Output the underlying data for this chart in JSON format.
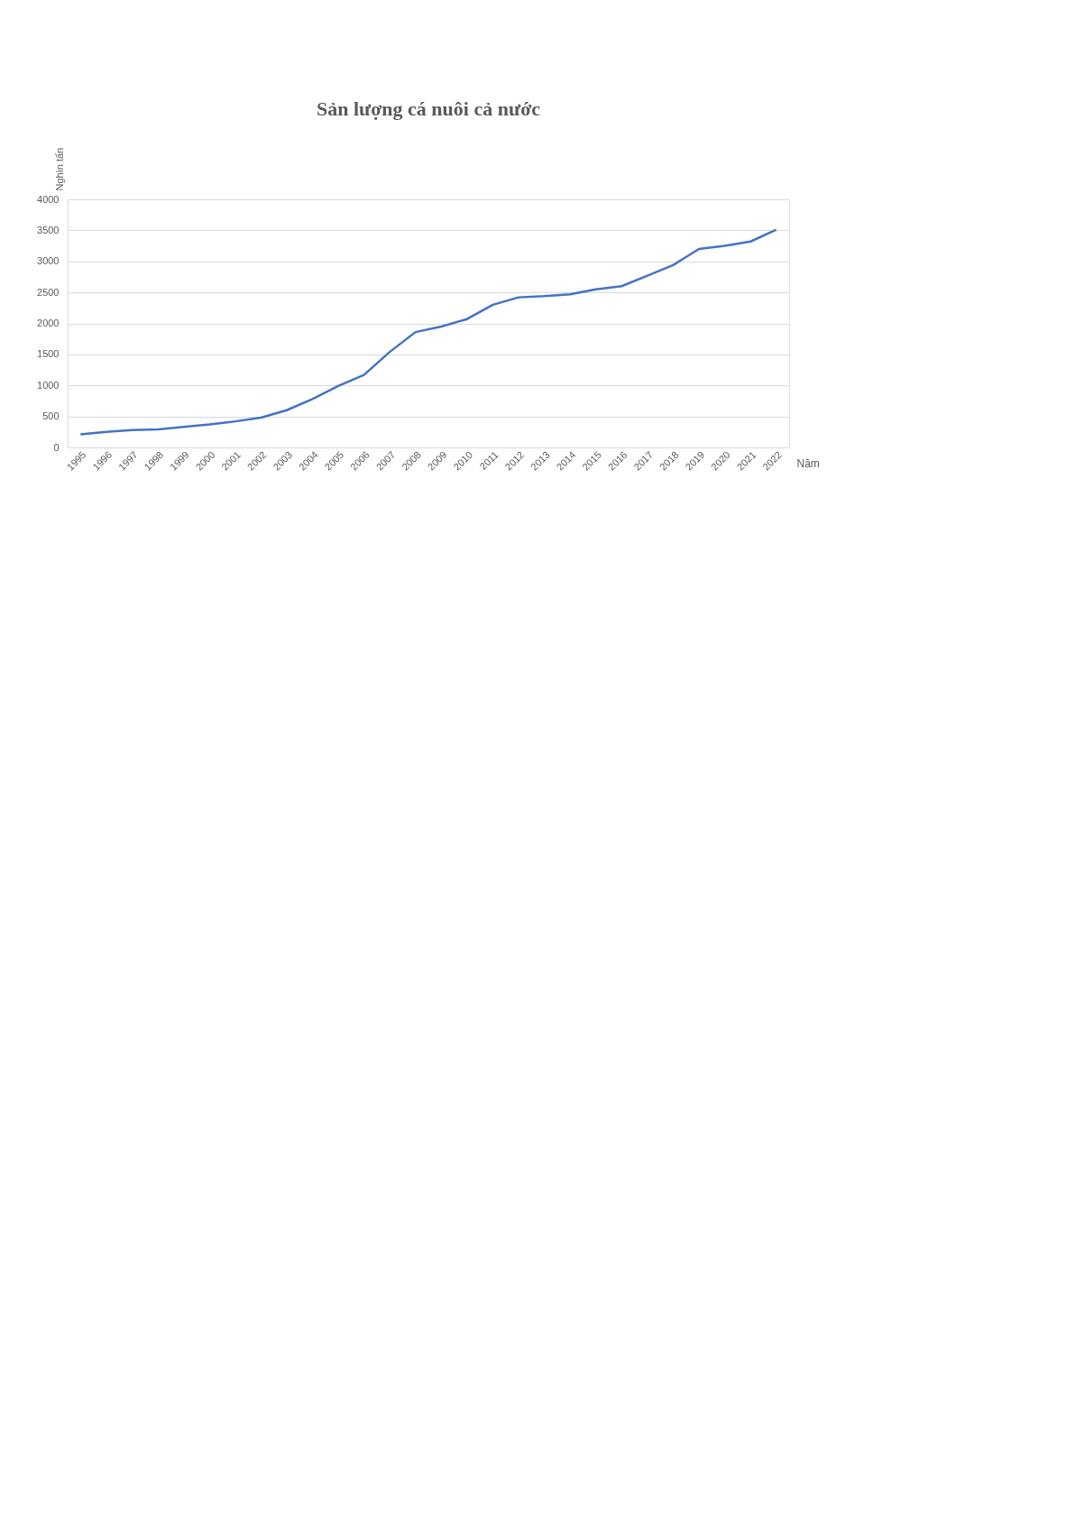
{
  "chart_data": {
    "type": "line",
    "title": "Sản lượng cá nuôi cả nước",
    "xlabel": "Năm",
    "ylabel": "Nghìn tấn",
    "categories": [
      "1995",
      "1996",
      "1997",
      "1998",
      "1999",
      "2000",
      "2001",
      "2002",
      "2003",
      "2004",
      "2005",
      "2006",
      "2007",
      "2008",
      "2009",
      "2010",
      "2011",
      "2012",
      "2013",
      "2014",
      "2015",
      "2016",
      "2017",
      "2018",
      "2019",
      "2020",
      "2021",
      "2022"
    ],
    "series": [
      {
        "color": "#4472c4",
        "values": [
          210,
          250,
          280,
          290,
          330,
          370,
          420,
          480,
          600,
          780,
          990,
          1170,
          1540,
          1860,
          1950,
          2070,
          2300,
          2420,
          2440,
          2470,
          2550,
          2600,
          2770,
          2940,
          3200,
          3250,
          3320,
          3510
        ]
      }
    ],
    "ylim": [
      0,
      4000
    ],
    "yticks": [
      0,
      500,
      1000,
      1500,
      2000,
      2500,
      3000,
      3500,
      4000
    ],
    "grid": "y",
    "marker": "none",
    "line_style": "solid"
  }
}
